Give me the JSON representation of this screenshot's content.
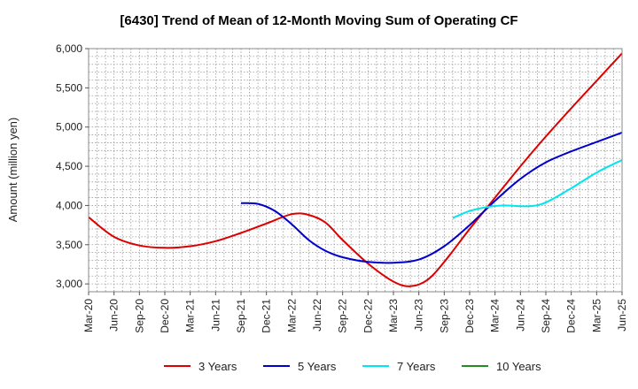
{
  "chart_data": {
    "type": "line",
    "title": "[6430]  Trend of Mean of 12-Month Moving Sum of Operating CF",
    "xlabel": "",
    "ylabel": "Amount (million yen)",
    "ylim": [
      2900,
      6000
    ],
    "yticks": [
      3000,
      3500,
      4000,
      4500,
      5000,
      5500,
      6000
    ],
    "ytick_labels": [
      "3,000",
      "3,500",
      "4,000",
      "4,500",
      "5,000",
      "5,500",
      "6,000"
    ],
    "xlim": [
      0,
      63
    ],
    "x_tick_labels": [
      "Mar-20",
      "Jun-20",
      "Sep-20",
      "Dec-20",
      "Mar-21",
      "Jun-21",
      "Sep-21",
      "Dec-21",
      "Mar-22",
      "Jun-22",
      "Sep-22",
      "Dec-22",
      "Mar-23",
      "Jun-23",
      "Sep-23",
      "Dec-23",
      "Mar-24",
      "Jun-24",
      "Sep-24",
      "Dec-24",
      "Mar-25",
      "Jun-25"
    ],
    "grid": true,
    "legend_position": "bottom",
    "series": [
      {
        "name": "3 Years",
        "color": "#dd0000",
        "points": [
          [
            0,
            3850
          ],
          [
            3,
            3600
          ],
          [
            6,
            3490
          ],
          [
            9,
            3460
          ],
          [
            12,
            3480
          ],
          [
            15,
            3545
          ],
          [
            18,
            3650
          ],
          [
            21,
            3770
          ],
          [
            24,
            3890
          ],
          [
            26,
            3880
          ],
          [
            28,
            3780
          ],
          [
            30,
            3560
          ],
          [
            33,
            3260
          ],
          [
            36,
            3030
          ],
          [
            38,
            2970
          ],
          [
            40,
            3050
          ],
          [
            42,
            3280
          ],
          [
            45,
            3700
          ],
          [
            48,
            4100
          ],
          [
            51,
            4500
          ],
          [
            54,
            4880
          ],
          [
            57,
            5240
          ],
          [
            60,
            5590
          ],
          [
            63,
            5940
          ]
        ]
      },
      {
        "name": "5 Years",
        "color": "#0000cc",
        "points": [
          [
            18,
            4030
          ],
          [
            20,
            4020
          ],
          [
            22,
            3930
          ],
          [
            24,
            3760
          ],
          [
            26,
            3560
          ],
          [
            28,
            3420
          ],
          [
            30,
            3340
          ],
          [
            33,
            3280
          ],
          [
            36,
            3270
          ],
          [
            39,
            3310
          ],
          [
            42,
            3480
          ],
          [
            45,
            3750
          ],
          [
            48,
            4060
          ],
          [
            51,
            4340
          ],
          [
            54,
            4550
          ],
          [
            57,
            4690
          ],
          [
            60,
            4810
          ],
          [
            63,
            4930
          ]
        ]
      },
      {
        "name": "7 Years",
        "color": "#00e5ee",
        "points": [
          [
            43,
            3840
          ],
          [
            45,
            3930
          ],
          [
            47,
            3980
          ],
          [
            49,
            4000
          ],
          [
            52,
            3990
          ],
          [
            54,
            4040
          ],
          [
            57,
            4220
          ],
          [
            60,
            4420
          ],
          [
            63,
            4580
          ]
        ]
      },
      {
        "name": "10 Years",
        "color": "#228b22",
        "points": []
      }
    ]
  }
}
